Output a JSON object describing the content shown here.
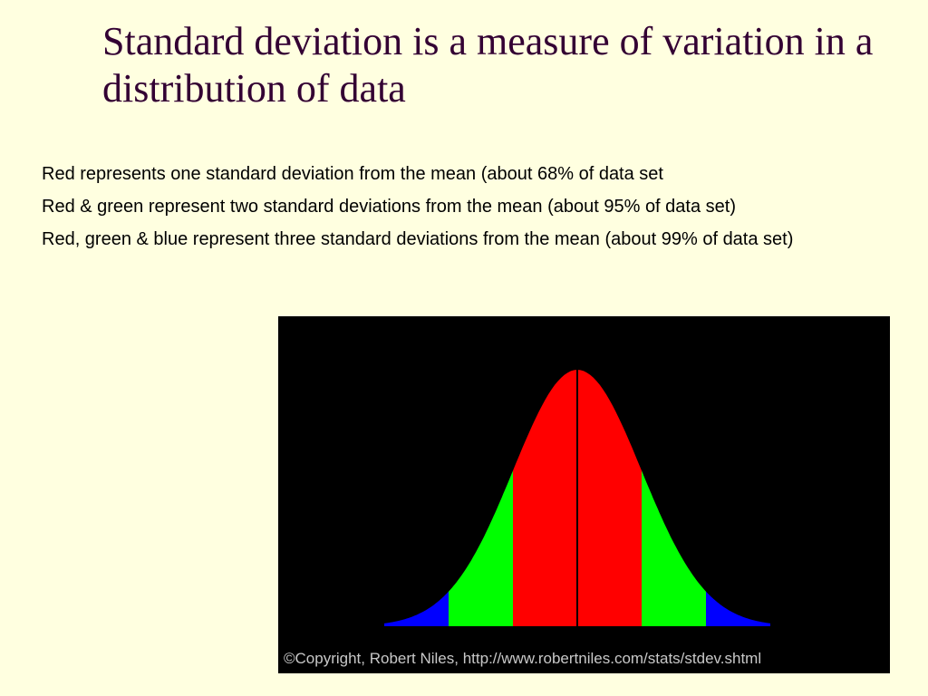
{
  "slide": {
    "title": "Standard deviation is a measure of variation in a distribution of data",
    "bullets": [
      "Red represents one standard deviation from the mean (about 68% of data set",
      "Red & green represent two standard deviations from the mean (about 95% of data set)",
      "Red, green & blue represent three standard deviations from the mean (about 99% of data set)"
    ]
  },
  "figure": {
    "copyright": "©Copyright, Robert Niles, http://www.robertniles.com/stats/stdev.shtml"
  },
  "chart_data": {
    "type": "area",
    "title": "",
    "xlabel": "",
    "ylabel": "",
    "distribution": "normal",
    "mean": 0,
    "standard_deviation": 1,
    "xlim": [
      -3,
      3
    ],
    "bands": [
      {
        "from": -3,
        "to": -2,
        "color": "#0000ff"
      },
      {
        "from": -2,
        "to": -1,
        "color": "#00ff00"
      },
      {
        "from": -1,
        "to": 1,
        "color": "#ff0000"
      },
      {
        "from": 1,
        "to": 2,
        "color": "#00ff00"
      },
      {
        "from": 2,
        "to": 3,
        "color": "#0000ff"
      }
    ],
    "mean_line_color": "#000000",
    "background": "#000000"
  }
}
